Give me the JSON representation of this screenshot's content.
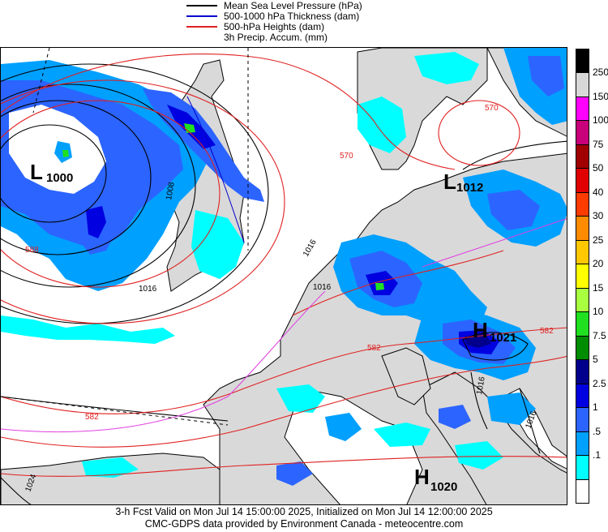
{
  "legend": {
    "items": [
      {
        "label": "Mean Sea Level Pressure (hPa)",
        "color": "#000000"
      },
      {
        "label": "500-1000 hPa Thickness (dam)",
        "color": "#0000cc"
      },
      {
        "label": "500-hPa Heights (dam)",
        "color": "#e02020"
      },
      {
        "label": "3h Precip. Accum. (mm)",
        "color": ""
      }
    ]
  },
  "scale": {
    "labels": [
      "250",
      "150",
      "100",
      "75",
      "50",
      "40",
      "30",
      "25",
      "20",
      "15",
      "10",
      "7.5",
      "5",
      "2.5",
      "1",
      ".5",
      ".1"
    ],
    "colors": [
      "#000000",
      "#d8d8d8",
      "#ff00ff",
      "#c8007a",
      "#a00000",
      "#e00000",
      "#ff3c00",
      "#ff8c00",
      "#ffc800",
      "#ffff00",
      "#a8ff40",
      "#20e020",
      "#008c00",
      "#00008c",
      "#0000e0",
      "#2c64ff",
      "#00a0ff",
      "#00ffff",
      "#ffffff"
    ]
  },
  "pressure_centers": [
    {
      "letter": "L",
      "value": "1000",
      "name": "low-atlantic"
    },
    {
      "letter": "L",
      "value": "1012",
      "name": "low-baltic"
    },
    {
      "letter": "H",
      "value": "1021",
      "name": "high-alps"
    },
    {
      "letter": "H",
      "value": "1020",
      "name": "high-mediterranean"
    }
  ],
  "contour_labels": {
    "red_570_east": "570",
    "red_570_north": "570",
    "red_588_west": "588",
    "red_582_south": "582",
    "red_582_center": "582",
    "red_582_east": "582",
    "black_1016_a": "1016",
    "black_1016_b": "1016",
    "black_1016_c": "1016",
    "black_1008": "1008",
    "black_1024": "1024",
    "black_1016_e": "1016",
    "black_1016_f": "1016"
  },
  "footer": {
    "line1": "3-h Fcst Valid on Mon Jul 14 15:00:00 2025, Initialized on Mon Jul 14 12:00:00 2025",
    "line2": "CMC-GDPS data provided by Environment Canada - meteocentre.com"
  }
}
